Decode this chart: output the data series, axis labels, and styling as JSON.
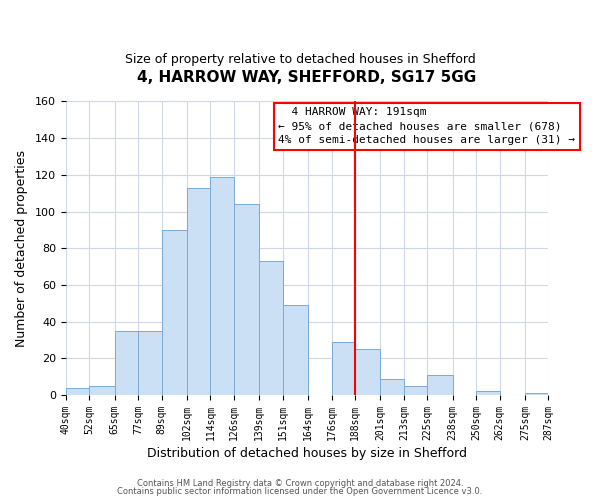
{
  "title": "4, HARROW WAY, SHEFFORD, SG17 5GG",
  "subtitle": "Size of property relative to detached houses in Shefford",
  "xlabel": "Distribution of detached houses by size in Shefford",
  "ylabel": "Number of detached properties",
  "bin_edges": [
    40,
    52,
    65,
    77,
    89,
    102,
    114,
    126,
    139,
    151,
    164,
    176,
    188,
    201,
    213,
    225,
    238,
    250,
    262,
    275,
    287
  ],
  "bar_heights": [
    4,
    5,
    35,
    35,
    90,
    113,
    119,
    104,
    73,
    49,
    0,
    29,
    25,
    9,
    5,
    11,
    0,
    2,
    0,
    1
  ],
  "bar_color": "#cce0f5",
  "bar_edge_color": "#7aaad4",
  "red_line_x": 188,
  "ylim": [
    0,
    160
  ],
  "annotation_title": "4 HARROW WAY: 191sqm",
  "annotation_line1": "← 95% of detached houses are smaller (678)",
  "annotation_line2": "4% of semi-detached houses are larger (31) →",
  "footnote1": "Contains HM Land Registry data © Crown copyright and database right 2024.",
  "footnote2": "Contains public sector information licensed under the Open Government Licence v3.0.",
  "background_color": "#ffffff",
  "grid_color": "#d0d8e8"
}
